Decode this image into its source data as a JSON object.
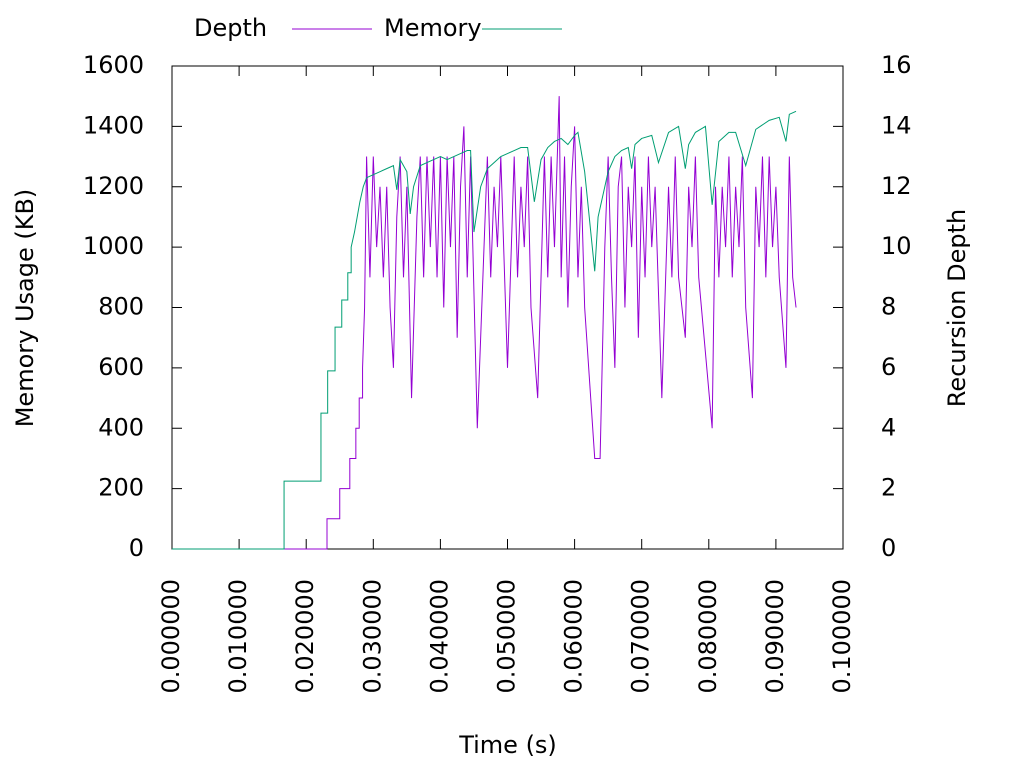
{
  "chart_data": {
    "type": "line",
    "xlabel": "Time (s)",
    "ylabel": "Memory Usage (KB)",
    "y2label": "Recursion Depth",
    "xlim": [
      0,
      0.1
    ],
    "xticks": [
      {
        "value": 0,
        "label": "0.000000"
      },
      {
        "value": 0.01,
        "label": "0.010000"
      },
      {
        "value": 0.02,
        "label": "0.020000"
      },
      {
        "value": 0.03,
        "label": "0.030000"
      },
      {
        "value": 0.04,
        "label": "0.040000"
      },
      {
        "value": 0.05,
        "label": "0.050000"
      },
      {
        "value": 0.06,
        "label": "0.060000"
      },
      {
        "value": 0.07,
        "label": "0.070000"
      },
      {
        "value": 0.08,
        "label": "0.080000"
      },
      {
        "value": 0.09,
        "label": "0.090000"
      },
      {
        "value": 0.1,
        "label": "0.100000"
      }
    ],
    "ylim": [
      0,
      1600
    ],
    "yticks": [
      0,
      200,
      400,
      600,
      800,
      1000,
      1200,
      1400,
      1600
    ],
    "y2lim": [
      0,
      16
    ],
    "y2ticks": [
      0,
      2,
      4,
      6,
      8,
      10,
      12,
      14,
      16
    ],
    "legend": "top",
    "series": [
      {
        "name": "Depth",
        "color": "#9400d3",
        "axis": "y2",
        "x": [
          0,
          0.0231,
          0.0231,
          0.025,
          0.025,
          0.0265,
          0.0265,
          0.0274,
          0.0274,
          0.0279,
          0.0279,
          0.0284,
          0.0284,
          0.0287,
          0.029,
          0.0295,
          0.03,
          0.0305,
          0.031,
          0.0315,
          0.032,
          0.0325,
          0.033,
          0.0335,
          0.034,
          0.0345,
          0.035,
          0.0357,
          0.0365,
          0.037,
          0.0375,
          0.038,
          0.0385,
          0.039,
          0.0395,
          0.04,
          0.0405,
          0.041,
          0.0415,
          0.042,
          0.0425,
          0.043,
          0.0435,
          0.044,
          0.0445,
          0.0455,
          0.0465,
          0.047,
          0.0475,
          0.048,
          0.0485,
          0.049,
          0.05,
          0.051,
          0.0515,
          0.052,
          0.0525,
          0.053,
          0.0535,
          0.0545,
          0.0555,
          0.056,
          0.0565,
          0.057,
          0.0577,
          0.058,
          0.0585,
          0.059,
          0.0595,
          0.06,
          0.0605,
          0.061,
          0.0615,
          0.063,
          0.0638,
          0.0645,
          0.065,
          0.0655,
          0.066,
          0.0665,
          0.067,
          0.0675,
          0.068,
          0.0685,
          0.069,
          0.0695,
          0.07,
          0.0705,
          0.071,
          0.0715,
          0.072,
          0.073,
          0.074,
          0.0745,
          0.075,
          0.0755,
          0.0765,
          0.077,
          0.0775,
          0.078,
          0.0785,
          0.0805,
          0.081,
          0.0815,
          0.082,
          0.0825,
          0.083,
          0.0835,
          0.084,
          0.0845,
          0.085,
          0.0855,
          0.0865,
          0.087,
          0.0875,
          0.088,
          0.0885,
          0.089,
          0.0895,
          0.09,
          0.0905,
          0.0915,
          0.092,
          0.0925,
          0.093
        ],
        "values": [
          0,
          0,
          1,
          1,
          2,
          2,
          3,
          3,
          4,
          4,
          5,
          5,
          6,
          8,
          13,
          9,
          13,
          10,
          12,
          9,
          12,
          8,
          6,
          11,
          13,
          9,
          12,
          5,
          11,
          13,
          9,
          13,
          10,
          13,
          9,
          13,
          8,
          13,
          10,
          13,
          7,
          12,
          14,
          9,
          13,
          4,
          10,
          13,
          9,
          12,
          10,
          13,
          6,
          13,
          9,
          12,
          10,
          13,
          8,
          5,
          13,
          9,
          13,
          10,
          15,
          9,
          13,
          8,
          12,
          14,
          9,
          12,
          8,
          3,
          3,
          10,
          13,
          9,
          6,
          12,
          13,
          8,
          12,
          10,
          13,
          7,
          12,
          9,
          13,
          10,
          12,
          5,
          12,
          9,
          13,
          9,
          7,
          12,
          10,
          13,
          9,
          4,
          12,
          9,
          12,
          10,
          13,
          9,
          12,
          10,
          13,
          8,
          5,
          12,
          10,
          13,
          9,
          13,
          10,
          12,
          9,
          6,
          13,
          9,
          8
        ]
      },
      {
        "name": "Memory",
        "color": "#009e73",
        "x": [
          0,
          0.0167,
          0.0167,
          0.0222,
          0.0222,
          0.0232,
          0.0232,
          0.0243,
          0.0243,
          0.0253,
          0.0253,
          0.0262,
          0.0262,
          0.0267,
          0.0267,
          0.0272,
          0.0276,
          0.028,
          0.0285,
          0.029,
          0.03,
          0.031,
          0.032,
          0.033,
          0.0335,
          0.034,
          0.035,
          0.0355,
          0.036,
          0.037,
          0.038,
          0.039,
          0.04,
          0.041,
          0.042,
          0.043,
          0.044,
          0.0445,
          0.045,
          0.046,
          0.047,
          0.048,
          0.049,
          0.05,
          0.051,
          0.052,
          0.053,
          0.054,
          0.055,
          0.056,
          0.057,
          0.058,
          0.059,
          0.06,
          0.0605,
          0.0615,
          0.063,
          0.0635,
          0.064,
          0.065,
          0.066,
          0.067,
          0.068,
          0.0685,
          0.069,
          0.07,
          0.0715,
          0.0725,
          0.074,
          0.0755,
          0.0765,
          0.077,
          0.078,
          0.0795,
          0.0805,
          0.0815,
          0.083,
          0.084,
          0.0855,
          0.087,
          0.089,
          0.0905,
          0.0915,
          0.092,
          0.093
        ],
        "values": [
          0,
          0,
          225,
          225,
          450,
          450,
          590,
          590,
          735,
          735,
          825,
          825,
          915,
          915,
          1000,
          1050,
          1100,
          1150,
          1200,
          1230,
          1240,
          1250,
          1260,
          1270,
          1190,
          1290,
          1250,
          1110,
          1200,
          1270,
          1280,
          1290,
          1300,
          1290,
          1300,
          1310,
          1320,
          1320,
          1050,
          1200,
          1260,
          1280,
          1300,
          1310,
          1320,
          1330,
          1330,
          1150,
          1290,
          1330,
          1350,
          1360,
          1340,
          1370,
          1380,
          1250,
          920,
          1100,
          1150,
          1250,
          1300,
          1320,
          1330,
          1260,
          1340,
          1360,
          1370,
          1280,
          1380,
          1400,
          1260,
          1340,
          1380,
          1400,
          1140,
          1350,
          1380,
          1380,
          1270,
          1390,
          1420,
          1430,
          1350,
          1440,
          1450
        ]
      }
    ]
  }
}
